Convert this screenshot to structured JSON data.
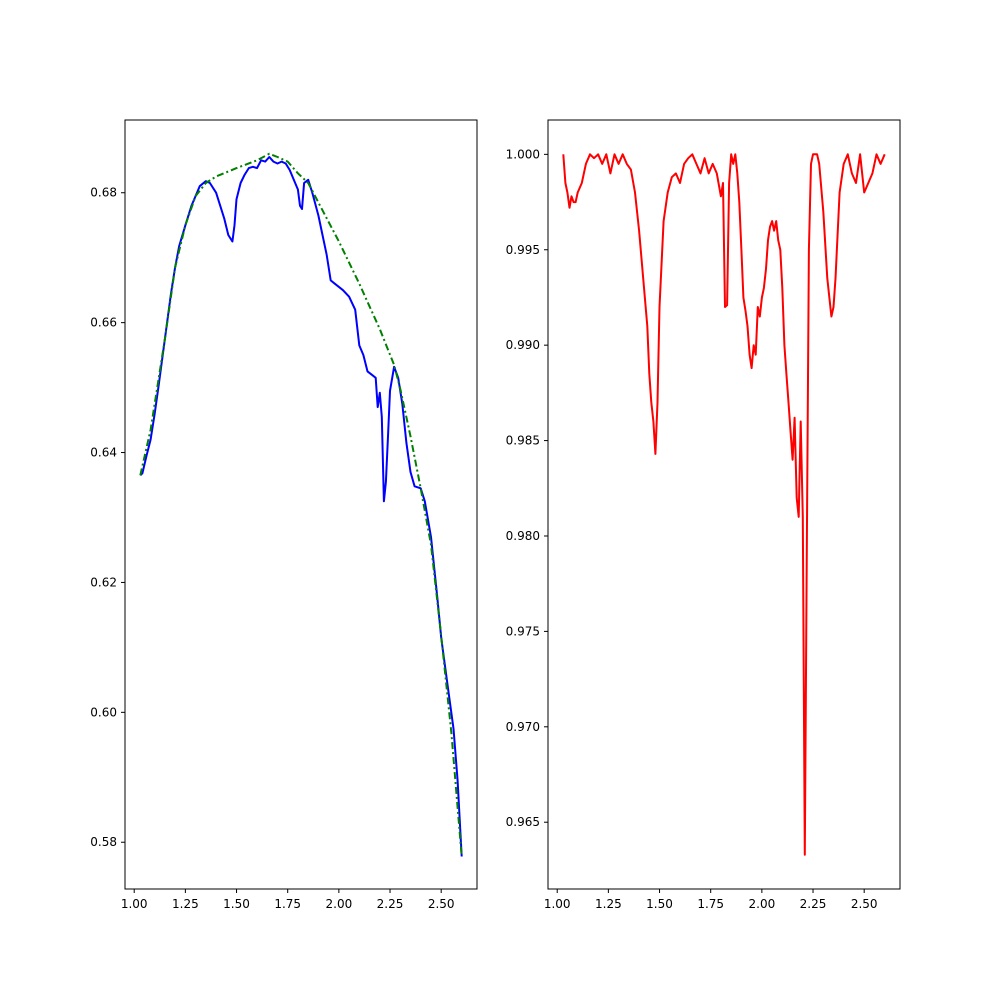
{
  "chart_data": [
    {
      "type": "line",
      "title": "",
      "xlabel": "",
      "ylabel": "",
      "xlim": [
        0.955,
        2.675
      ],
      "ylim": [
        0.5728,
        0.6912
      ],
      "x_ticks": [
        "1.00",
        "1.25",
        "1.50",
        "1.75",
        "2.00",
        "2.25",
        "2.50"
      ],
      "x_tick_values": [
        1.0,
        1.25,
        1.5,
        1.75,
        2.0,
        2.25,
        2.5
      ],
      "y_ticks": [
        "0.58",
        "0.60",
        "0.62",
        "0.64",
        "0.66",
        "0.68"
      ],
      "y_tick_values": [
        0.58,
        0.6,
        0.62,
        0.64,
        0.66,
        0.68
      ],
      "grid": false,
      "series": [
        {
          "color": "#0000ff",
          "style": "solid",
          "x": [
            1.03,
            1.04,
            1.06,
            1.08,
            1.1,
            1.12,
            1.15,
            1.18,
            1.2,
            1.22,
            1.25,
            1.28,
            1.3,
            1.32,
            1.35,
            1.37,
            1.4,
            1.42,
            1.44,
            1.46,
            1.48,
            1.49,
            1.5,
            1.52,
            1.54,
            1.56,
            1.58,
            1.6,
            1.62,
            1.64,
            1.66,
            1.68,
            1.7,
            1.72,
            1.74,
            1.76,
            1.78,
            1.8,
            1.81,
            1.82,
            1.83,
            1.85,
            1.87,
            1.9,
            1.92,
            1.94,
            1.96,
            1.98,
            2.0,
            2.02,
            2.05,
            2.08,
            2.1,
            2.12,
            2.14,
            2.16,
            2.18,
            2.19,
            2.2,
            2.21,
            2.22,
            2.23,
            2.24,
            2.25,
            2.27,
            2.29,
            2.31,
            2.33,
            2.35,
            2.37,
            2.4,
            2.42,
            2.45,
            2.48,
            2.5,
            2.53,
            2.56,
            2.58,
            2.6
          ],
          "y": [
            0.6365,
            0.6368,
            0.6395,
            0.642,
            0.646,
            0.6505,
            0.6575,
            0.6645,
            0.6685,
            0.6718,
            0.675,
            0.678,
            0.6795,
            0.681,
            0.6818,
            0.6815,
            0.68,
            0.678,
            0.676,
            0.6735,
            0.6725,
            0.675,
            0.679,
            0.6815,
            0.6828,
            0.6838,
            0.684,
            0.6838,
            0.685,
            0.6848,
            0.6855,
            0.6848,
            0.6845,
            0.6848,
            0.6845,
            0.6835,
            0.682,
            0.6805,
            0.678,
            0.6775,
            0.6815,
            0.682,
            0.68,
            0.6765,
            0.6735,
            0.6705,
            0.6665,
            0.666,
            0.6655,
            0.665,
            0.664,
            0.662,
            0.6565,
            0.655,
            0.6525,
            0.652,
            0.6515,
            0.647,
            0.6492,
            0.6455,
            0.6325,
            0.6355,
            0.6425,
            0.6495,
            0.6532,
            0.6515,
            0.6475,
            0.6415,
            0.637,
            0.6348,
            0.6345,
            0.6325,
            0.627,
            0.618,
            0.6115,
            0.6045,
            0.5975,
            0.5895,
            0.5778
          ]
        },
        {
          "color": "#008000",
          "style": "dashdot",
          "x": [
            1.03,
            1.08,
            1.15,
            1.2,
            1.25,
            1.3,
            1.35,
            1.4,
            1.5,
            1.6,
            1.66,
            1.7,
            1.75,
            1.8,
            1.85,
            1.9,
            2.0,
            2.1,
            2.2,
            2.27,
            2.3,
            2.35,
            2.4,
            2.45,
            2.5,
            2.55,
            2.6
          ],
          "y": [
            0.6365,
            0.6435,
            0.6575,
            0.6685,
            0.675,
            0.6795,
            0.6815,
            0.6825,
            0.6838,
            0.685,
            0.686,
            0.6855,
            0.6848,
            0.683,
            0.6815,
            0.6785,
            0.6725,
            0.666,
            0.659,
            0.6535,
            0.6498,
            0.6425,
            0.6345,
            0.6258,
            0.6118,
            0.5968,
            0.5778
          ]
        }
      ]
    },
    {
      "type": "line",
      "title": "",
      "xlabel": "",
      "ylabel": "",
      "xlim": [
        0.955,
        2.675
      ],
      "ylim": [
        0.9615,
        1.0018
      ],
      "x_ticks": [
        "1.00",
        "1.25",
        "1.50",
        "1.75",
        "2.00",
        "2.25",
        "2.50"
      ],
      "x_tick_values": [
        1.0,
        1.25,
        1.5,
        1.75,
        2.0,
        2.25,
        2.5
      ],
      "y_ticks": [
        "0.965",
        "0.970",
        "0.975",
        "0.980",
        "0.985",
        "0.990",
        "0.995",
        "1.000"
      ],
      "y_tick_values": [
        0.965,
        0.97,
        0.975,
        0.98,
        0.985,
        0.99,
        0.995,
        1.0
      ],
      "grid": false,
      "series": [
        {
          "color": "#ff0000",
          "style": "solid",
          "x": [
            1.03,
            1.04,
            1.05,
            1.06,
            1.07,
            1.08,
            1.09,
            1.1,
            1.12,
            1.14,
            1.16,
            1.18,
            1.2,
            1.22,
            1.24,
            1.26,
            1.28,
            1.3,
            1.32,
            1.34,
            1.36,
            1.38,
            1.4,
            1.42,
            1.44,
            1.45,
            1.46,
            1.47,
            1.48,
            1.49,
            1.5,
            1.52,
            1.54,
            1.56,
            1.58,
            1.6,
            1.62,
            1.64,
            1.66,
            1.68,
            1.7,
            1.72,
            1.74,
            1.76,
            1.78,
            1.8,
            1.81,
            1.82,
            1.83,
            1.84,
            1.85,
            1.86,
            1.87,
            1.88,
            1.89,
            1.9,
            1.91,
            1.92,
            1.93,
            1.94,
            1.95,
            1.96,
            1.97,
            1.98,
            1.99,
            2.0,
            2.01,
            2.02,
            2.03,
            2.04,
            2.05,
            2.06,
            2.07,
            2.08,
            2.09,
            2.1,
            2.11,
            2.12,
            2.13,
            2.14,
            2.15,
            2.16,
            2.17,
            2.18,
            2.19,
            2.2,
            2.21,
            2.22,
            2.23,
            2.24,
            2.25,
            2.26,
            2.27,
            2.28,
            2.3,
            2.32,
            2.34,
            2.35,
            2.36,
            2.38,
            2.4,
            2.42,
            2.44,
            2.46,
            2.48,
            2.5,
            2.52,
            2.54,
            2.56,
            2.58,
            2.6
          ],
          "y": [
            1.0,
            0.9985,
            0.998,
            0.9972,
            0.9978,
            0.9975,
            0.9975,
            0.998,
            0.9985,
            0.9995,
            1.0,
            0.9998,
            1.0,
            0.9995,
            1.0,
            0.999,
            1.0,
            0.9995,
            1.0,
            0.9995,
            0.9992,
            0.998,
            0.996,
            0.9935,
            0.991,
            0.9885,
            0.987,
            0.986,
            0.9843,
            0.987,
            0.992,
            0.9965,
            0.998,
            0.9988,
            0.999,
            0.9985,
            0.9995,
            0.9998,
            1.0,
            0.9995,
            0.999,
            0.9998,
            0.999,
            0.9995,
            0.999,
            0.9978,
            0.9985,
            0.992,
            0.9921,
            0.9985,
            1.0,
            0.9995,
            1.0,
            0.999,
            0.9975,
            0.995,
            0.9925,
            0.9918,
            0.991,
            0.9895,
            0.9888,
            0.99,
            0.9895,
            0.992,
            0.9915,
            0.9925,
            0.993,
            0.994,
            0.9955,
            0.9962,
            0.9965,
            0.996,
            0.9965,
            0.9955,
            0.995,
            0.993,
            0.99,
            0.9885,
            0.987,
            0.9855,
            0.984,
            0.9862,
            0.982,
            0.981,
            0.986,
            0.981,
            0.9633,
            0.98,
            0.995,
            0.9995,
            1.0,
            1.0,
            1.0,
            0.9995,
            0.997,
            0.9935,
            0.9915,
            0.992,
            0.9935,
            0.998,
            0.9995,
            1.0,
            0.999,
            0.9985,
            1.0,
            0.998,
            0.9985,
            0.999,
            1.0,
            0.9995,
            1.0
          ]
        }
      ]
    }
  ]
}
